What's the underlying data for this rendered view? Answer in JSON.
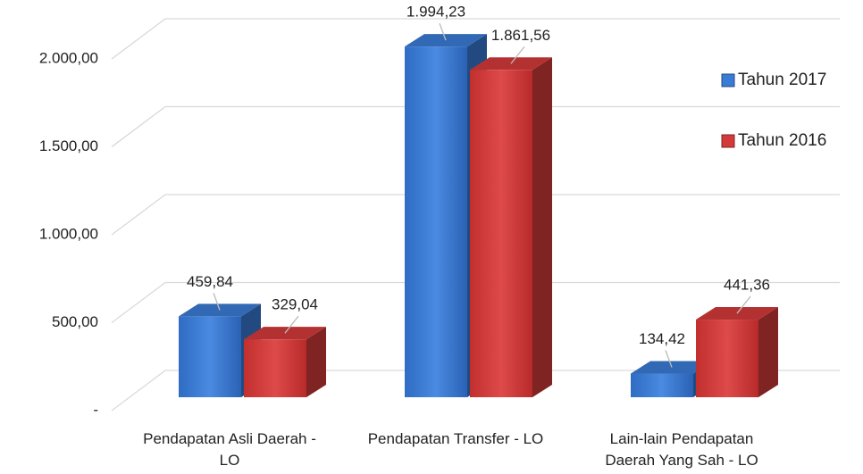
{
  "chart_data": {
    "type": "bar3d",
    "categories": [
      "Pendapatan Asli Daerah - LO",
      "Pendapatan Transfer - LO",
      "Lain-lain Pendapatan Daerah Yang Sah - LO"
    ],
    "series": [
      {
        "name": "Tahun 2017",
        "color": "#3a7bd5",
        "values": [
          459.84,
          1994.23,
          134.42
        ],
        "value_labels": [
          "459,84",
          "1.994,23",
          "134,42"
        ]
      },
      {
        "name": "Tahun 2016",
        "color": "#d43a3a",
        "values": [
          329.04,
          1861.56,
          441.36
        ],
        "value_labels": [
          "329,04",
          "1.861,56",
          "441,36"
        ]
      }
    ],
    "ylim": [
      0,
      2000
    ],
    "yticks": [
      {
        "value": 0,
        "label": "-"
      },
      {
        "value": 500,
        "label": "500,00"
      },
      {
        "value": 1000,
        "label": "1.000,00"
      },
      {
        "value": 1500,
        "label": "1.500,00"
      },
      {
        "value": 2000,
        "label": "2.000,00"
      }
    ],
    "grid": true,
    "legend": "right"
  }
}
